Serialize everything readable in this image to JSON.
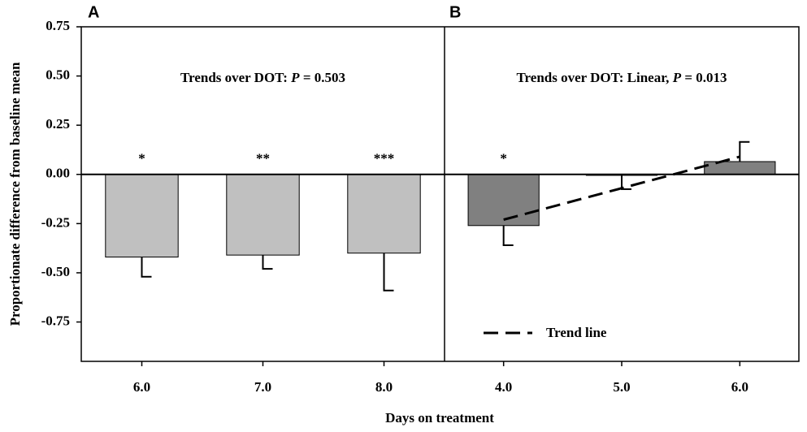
{
  "chart_data": [
    {
      "type": "bar",
      "panel": "A",
      "ylabel": "Proportionate difference from baseline mean",
      "xlabel": "Days on treatment",
      "annotation": [
        "Trends over DOT:  ",
        "P",
        " = 0.503"
      ],
      "categories": [
        "6.0",
        "7.0",
        "8.0"
      ],
      "values": [
        -0.42,
        -0.41,
        -0.4
      ],
      "errors": [
        0.1,
        0.07,
        0.19
      ],
      "significance": [
        "*",
        "**",
        "***"
      ],
      "color": "#c0c0c0",
      "ylim": [
        -0.95,
        0.75
      ],
      "yticks": [
        {
          "value": 0.75,
          "label": "0.75"
        },
        {
          "value": 0.5,
          "label": "0.50"
        },
        {
          "value": 0.25,
          "label": "0.25"
        },
        {
          "value": 0,
          "label": "0.00"
        },
        {
          "value": -0.25,
          "label": "-0.25"
        },
        {
          "value": -0.5,
          "label": "-0.50"
        },
        {
          "value": -0.75,
          "label": "-0.75"
        }
      ]
    },
    {
      "type": "bar",
      "panel": "B",
      "annotation": [
        "Trends over DOT:  Linear, ",
        "P",
        " = 0.013"
      ],
      "categories": [
        "4.0",
        "5.0",
        "6.0"
      ],
      "values": [
        -0.26,
        -0.005,
        0.065
      ],
      "errors": [
        0.1,
        0.07,
        0.1
      ],
      "significance": [
        "*",
        null,
        null
      ],
      "color": "#808080",
      "ylim": [
        -0.95,
        0.75
      ],
      "trend": {
        "name": "Trend line",
        "values": [
          -0.23,
          -0.07,
          0.09
        ]
      }
    }
  ]
}
